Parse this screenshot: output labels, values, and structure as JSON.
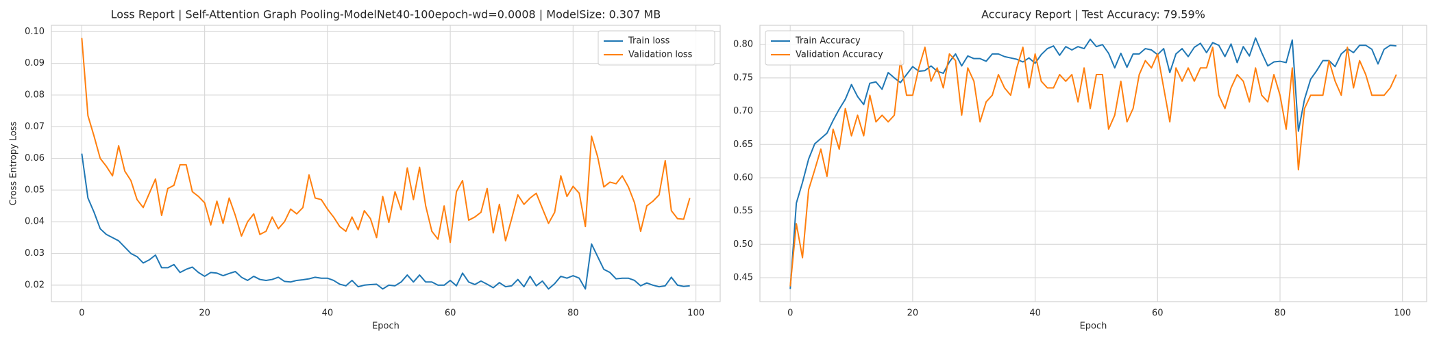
{
  "chart_data": [
    {
      "type": "line",
      "title": "Loss Report | Self-Attention Graph Pooling-ModelNet40-100epoch-wd=0.0008 | ModelSize: 0.307 MB",
      "xlabel": "Epoch",
      "ylabel": "Cross Entropy Loss",
      "grid": true,
      "legend": "upper right",
      "xlim": [
        -4.95,
        103.95
      ],
      "xticks": [
        0,
        20,
        40,
        60,
        80,
        100
      ],
      "ylim": [
        0.0148,
        0.102
      ],
      "yticks": [
        0.02,
        0.03,
        0.04,
        0.05,
        0.06,
        0.07,
        0.08,
        0.09,
        {
          "value": 0.1,
          "label": "0.10"
        }
      ],
      "x": [
        0,
        1,
        2,
        3,
        4,
        5,
        6,
        7,
        8,
        9,
        10,
        11,
        12,
        13,
        14,
        15,
        16,
        17,
        18,
        19,
        20,
        21,
        22,
        23,
        24,
        25,
        26,
        27,
        28,
        29,
        30,
        31,
        32,
        33,
        34,
        35,
        36,
        37,
        38,
        39,
        40,
        41,
        42,
        43,
        44,
        45,
        46,
        47,
        48,
        49,
        50,
        51,
        52,
        53,
        54,
        55,
        56,
        57,
        58,
        59,
        60,
        61,
        62,
        63,
        64,
        65,
        66,
        67,
        68,
        69,
        70,
        71,
        72,
        73,
        74,
        75,
        76,
        77,
        78,
        79,
        80,
        81,
        82,
        83,
        84,
        85,
        86,
        87,
        88,
        89,
        90,
        91,
        92,
        93,
        94,
        95,
        96,
        97,
        98,
        99
      ],
      "series": [
        {
          "name": "Train loss",
          "color": "#1f77b4",
          "values": [
            0.0615,
            0.0475,
            0.043,
            0.0378,
            0.036,
            0.035,
            0.034,
            0.032,
            0.03,
            0.029,
            0.027,
            0.028,
            0.0295,
            0.0255,
            0.0255,
            0.0265,
            0.024,
            0.025,
            0.0257,
            0.024,
            0.0228,
            0.024,
            0.0238,
            0.023,
            0.0237,
            0.0243,
            0.0225,
            0.0215,
            0.0228,
            0.0218,
            0.0215,
            0.0218,
            0.0225,
            0.0212,
            0.021,
            0.0215,
            0.0217,
            0.022,
            0.0225,
            0.0222,
            0.0222,
            0.0215,
            0.0203,
            0.0198,
            0.0215,
            0.0195,
            0.02,
            0.0202,
            0.0203,
            0.0188,
            0.02,
            0.0198,
            0.021,
            0.0232,
            0.021,
            0.0232,
            0.021,
            0.021,
            0.02,
            0.02,
            0.0215,
            0.0198,
            0.0238,
            0.021,
            0.0202,
            0.0213,
            0.0203,
            0.0192,
            0.0208,
            0.0195,
            0.0198,
            0.0218,
            0.0195,
            0.0228,
            0.0198,
            0.0213,
            0.0188,
            0.0205,
            0.0228,
            0.0222,
            0.023,
            0.0222,
            0.0188,
            0.033,
            0.029,
            0.025,
            0.024,
            0.022,
            0.0222,
            0.0222,
            0.0215,
            0.0198,
            0.0207,
            0.02,
            0.0195,
            0.0198,
            0.0225,
            0.02,
            0.0196,
            0.0198
          ]
        },
        {
          "name": "Validation loss",
          "color": "#ff7f0e",
          "values": [
            0.098,
            0.0735,
            0.067,
            0.06,
            0.0575,
            0.0545,
            0.064,
            0.056,
            0.053,
            0.047,
            0.0445,
            0.049,
            0.0535,
            0.042,
            0.0505,
            0.0515,
            0.058,
            0.058,
            0.0495,
            0.048,
            0.046,
            0.039,
            0.0465,
            0.0395,
            0.0475,
            0.042,
            0.0355,
            0.04,
            0.0425,
            0.036,
            0.037,
            0.0415,
            0.0378,
            0.04,
            0.044,
            0.0425,
            0.0445,
            0.0548,
            0.0475,
            0.047,
            0.044,
            0.0415,
            0.0385,
            0.037,
            0.0415,
            0.0375,
            0.0435,
            0.041,
            0.035,
            0.048,
            0.0398,
            0.0495,
            0.0438,
            0.057,
            0.047,
            0.0572,
            0.045,
            0.037,
            0.0345,
            0.045,
            0.0335,
            0.0495,
            0.053,
            0.0405,
            0.0415,
            0.043,
            0.0505,
            0.0365,
            0.0455,
            0.034,
            0.041,
            0.0485,
            0.0455,
            0.0475,
            0.049,
            0.0442,
            0.0395,
            0.043,
            0.0545,
            0.048,
            0.0512,
            0.049,
            0.0385,
            0.067,
            0.0605,
            0.051,
            0.0525,
            0.052,
            0.0545,
            0.051,
            0.046,
            0.037,
            0.045,
            0.0465,
            0.0485,
            0.0593,
            0.0435,
            0.041,
            0.0408,
            0.0475
          ]
        }
      ]
    },
    {
      "type": "line",
      "title": "Accuracy Report | Test Accuracy: 79.59%",
      "xlabel": "Epoch",
      "grid": true,
      "legend": "upper left",
      "xlim": [
        -4.95,
        103.95
      ],
      "xticks": [
        0,
        20,
        40,
        60,
        80,
        100
      ],
      "ylim": [
        0.414,
        0.829
      ],
      "yticks": [
        0.45,
        {
          "value": 0.5,
          "label": "0.50"
        },
        0.55,
        {
          "value": 0.6,
          "label": "0.60"
        },
        0.65,
        {
          "value": 0.7,
          "label": "0.70"
        },
        0.75,
        {
          "value": 0.8,
          "label": "0.80"
        }
      ],
      "x": [
        0,
        1,
        2,
        3,
        4,
        5,
        6,
        7,
        8,
        9,
        10,
        11,
        12,
        13,
        14,
        15,
        16,
        17,
        18,
        19,
        20,
        21,
        22,
        23,
        24,
        25,
        26,
        27,
        28,
        29,
        30,
        31,
        32,
        33,
        34,
        35,
        36,
        37,
        38,
        39,
        40,
        41,
        42,
        43,
        44,
        45,
        46,
        47,
        48,
        49,
        50,
        51,
        52,
        53,
        54,
        55,
        56,
        57,
        58,
        59,
        60,
        61,
        62,
        63,
        64,
        65,
        66,
        67,
        68,
        69,
        70,
        71,
        72,
        73,
        74,
        75,
        76,
        77,
        78,
        79,
        80,
        81,
        82,
        83,
        84,
        85,
        86,
        87,
        88,
        89,
        90,
        91,
        92,
        93,
        94,
        95,
        96,
        97,
        98,
        99
      ],
      "series": [
        {
          "name": "Train Accuracy",
          "color": "#1f77b4",
          "values": [
            0.433,
            0.562,
            0.593,
            0.628,
            0.651,
            0.659,
            0.667,
            0.686,
            0.703,
            0.718,
            0.74,
            0.722,
            0.71,
            0.742,
            0.744,
            0.733,
            0.758,
            0.75,
            0.743,
            0.755,
            0.767,
            0.76,
            0.761,
            0.768,
            0.76,
            0.757,
            0.774,
            0.786,
            0.768,
            0.783,
            0.779,
            0.779,
            0.775,
            0.786,
            0.786,
            0.782,
            0.78,
            0.778,
            0.774,
            0.78,
            0.772,
            0.785,
            0.794,
            0.798,
            0.784,
            0.797,
            0.792,
            0.797,
            0.794,
            0.808,
            0.797,
            0.8,
            0.787,
            0.765,
            0.787,
            0.766,
            0.786,
            0.786,
            0.794,
            0.792,
            0.785,
            0.794,
            0.758,
            0.786,
            0.794,
            0.782,
            0.796,
            0.802,
            0.788,
            0.803,
            0.799,
            0.782,
            0.801,
            0.773,
            0.797,
            0.783,
            0.81,
            0.788,
            0.768,
            0.774,
            0.775,
            0.773,
            0.807,
            0.67,
            0.718,
            0.748,
            0.761,
            0.776,
            0.776,
            0.767,
            0.786,
            0.794,
            0.788,
            0.799,
            0.799,
            0.793,
            0.771,
            0.793,
            0.799,
            0.798
          ]
        },
        {
          "name": "Validation Accuracy",
          "color": "#ff7f0e",
          "values": [
            0.437,
            0.531,
            0.48,
            0.582,
            0.612,
            0.643,
            0.602,
            0.673,
            0.643,
            0.704,
            0.663,
            0.694,
            0.663,
            0.724,
            0.684,
            0.694,
            0.684,
            0.694,
            0.776,
            0.724,
            0.724,
            0.765,
            0.796,
            0.745,
            0.765,
            0.735,
            0.786,
            0.776,
            0.694,
            0.765,
            0.745,
            0.684,
            0.714,
            0.724,
            0.755,
            0.735,
            0.724,
            0.765,
            0.796,
            0.735,
            0.786,
            0.745,
            0.735,
            0.735,
            0.755,
            0.745,
            0.755,
            0.714,
            0.765,
            0.704,
            0.755,
            0.755,
            0.673,
            0.694,
            0.745,
            0.684,
            0.704,
            0.755,
            0.776,
            0.765,
            0.786,
            0.735,
            0.684,
            0.765,
            0.745,
            0.765,
            0.745,
            0.765,
            0.765,
            0.796,
            0.724,
            0.704,
            0.735,
            0.755,
            0.745,
            0.714,
            0.765,
            0.724,
            0.714,
            0.755,
            0.724,
            0.673,
            0.765,
            0.612,
            0.704,
            0.724,
            0.724,
            0.724,
            0.776,
            0.745,
            0.724,
            0.796,
            0.735,
            0.776,
            0.755,
            0.724,
            0.724,
            0.724,
            0.735,
            0.755
          ]
        }
      ]
    }
  ]
}
